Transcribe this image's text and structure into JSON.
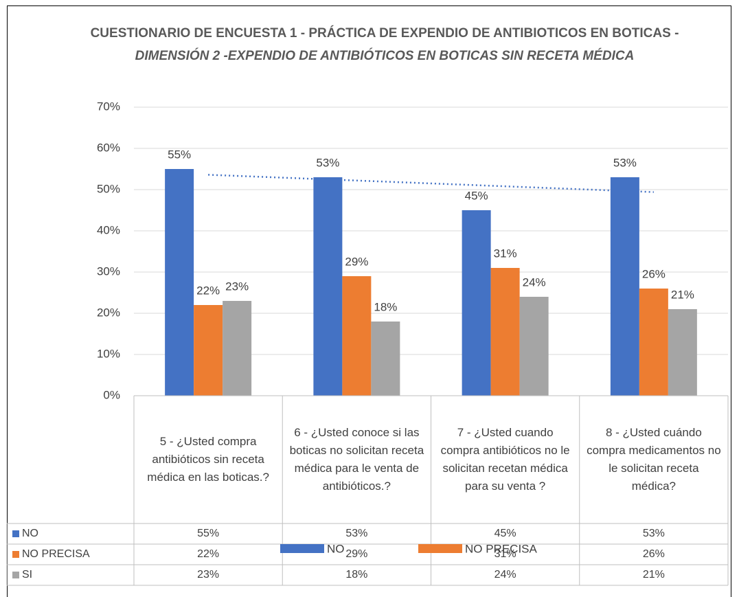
{
  "chart_data": {
    "type": "bar",
    "title": "CUESTIONARIO DE ENCUESTA 1 - PRÁCTICA DE EXPENDIO DE ANTIBIOTICOS EN BOTICAS -",
    "subtitle": "DIMENSIÓN 2 -EXPENDIO DE ANTIBIÓTICOS EN BOTICAS SIN RECETA MÉDICA",
    "categories": [
      "5 - ¿Usted compra antibióticos sin receta médica en las boticas.?",
      "6 - ¿Usted conoce si las boticas no solicitan receta médica para le venta de antibióticos.?",
      "7 - ¿Usted cuando compra antibióticos no le solicitan recetan médica para su venta ?",
      "8 - ¿Usted cuándo compra medicamentos no le solicitan receta médica?"
    ],
    "series": [
      {
        "name": "NO",
        "color": "#4472c4",
        "in_legend": true,
        "trendline": true,
        "values": [
          55,
          53,
          45,
          53
        ],
        "value_labels": [
          "55%",
          "53%",
          "45%",
          "53%"
        ]
      },
      {
        "name": "NO PRECISA",
        "color": "#ed7d31",
        "in_legend": true,
        "trendline": false,
        "values": [
          22,
          29,
          31,
          26
        ],
        "value_labels": [
          "22%",
          "29%",
          "31%",
          "26%"
        ]
      },
      {
        "name": "SI",
        "color": "#a5a5a5",
        "in_legend": false,
        "trendline": false,
        "values": [
          23,
          18,
          24,
          21
        ],
        "value_labels": [
          "23%",
          "18%",
          "24%",
          "21%"
        ]
      }
    ],
    "ylim": [
      0,
      70
    ],
    "yticks": [
      {
        "value": 0,
        "label": "0%"
      },
      {
        "value": 10,
        "label": "10%"
      },
      {
        "value": 20,
        "label": "20%"
      },
      {
        "value": 30,
        "label": "30%"
      },
      {
        "value": 40,
        "label": "40%"
      },
      {
        "value": 50,
        "label": "50%"
      },
      {
        "value": 60,
        "label": "60%"
      },
      {
        "value": 70,
        "label": "70%"
      }
    ],
    "grid": true,
    "legend": "bottom"
  }
}
